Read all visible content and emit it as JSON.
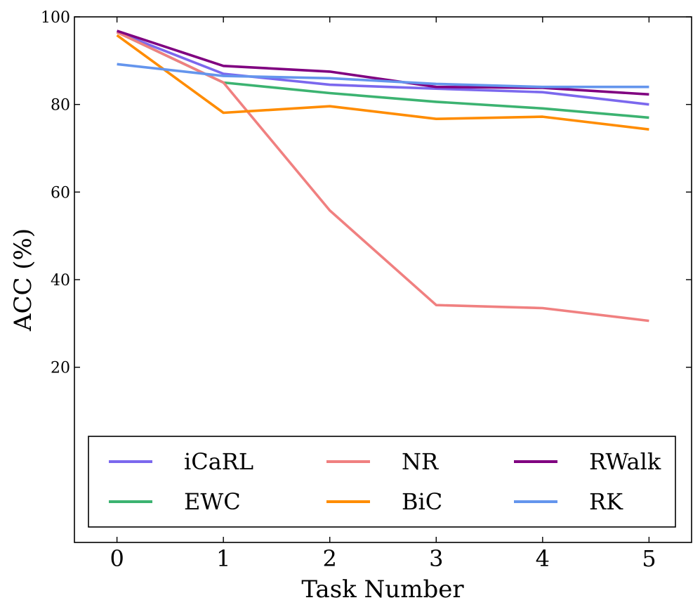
{
  "chart_data": {
    "type": "line",
    "title": "",
    "xlabel": "Task Number",
    "ylabel": "ACC (%)",
    "x": [
      0,
      1,
      2,
      3,
      4,
      5
    ],
    "xlim": [
      -0.4,
      5.4
    ],
    "ylim": [
      -20,
      100
    ],
    "x_ticks": [
      "0",
      "1",
      "2",
      "3",
      "4",
      "5"
    ],
    "y_ticks": [
      "20",
      "40",
      "60",
      "80",
      "100"
    ],
    "grid": false,
    "legend_position": "bottom",
    "series": [
      {
        "name": "iCaRL",
        "color": "#7b68ee",
        "values": [
          96.5,
          87.0,
          84.5,
          83.6,
          82.8,
          80.0
        ]
      },
      {
        "name": "EWC",
        "color": "#3cb371",
        "values": [
          96.5,
          85.0,
          82.6,
          80.6,
          79.1,
          77.0
        ]
      },
      {
        "name": "NR",
        "color": "#f08080",
        "values": [
          96.5,
          85.0,
          55.8,
          34.2,
          33.5,
          30.6
        ]
      },
      {
        "name": "BiC",
        "color": "#ff8c00",
        "values": [
          95.8,
          78.1,
          79.6,
          76.7,
          77.2,
          74.3
        ]
      },
      {
        "name": "RWalk",
        "color": "#800080",
        "values": [
          96.8,
          88.8,
          87.5,
          84.0,
          83.8,
          82.3
        ]
      },
      {
        "name": "RK",
        "color": "#6495ed",
        "values": [
          89.2,
          86.5,
          86.0,
          84.7,
          84.0,
          84.0
        ]
      }
    ]
  }
}
